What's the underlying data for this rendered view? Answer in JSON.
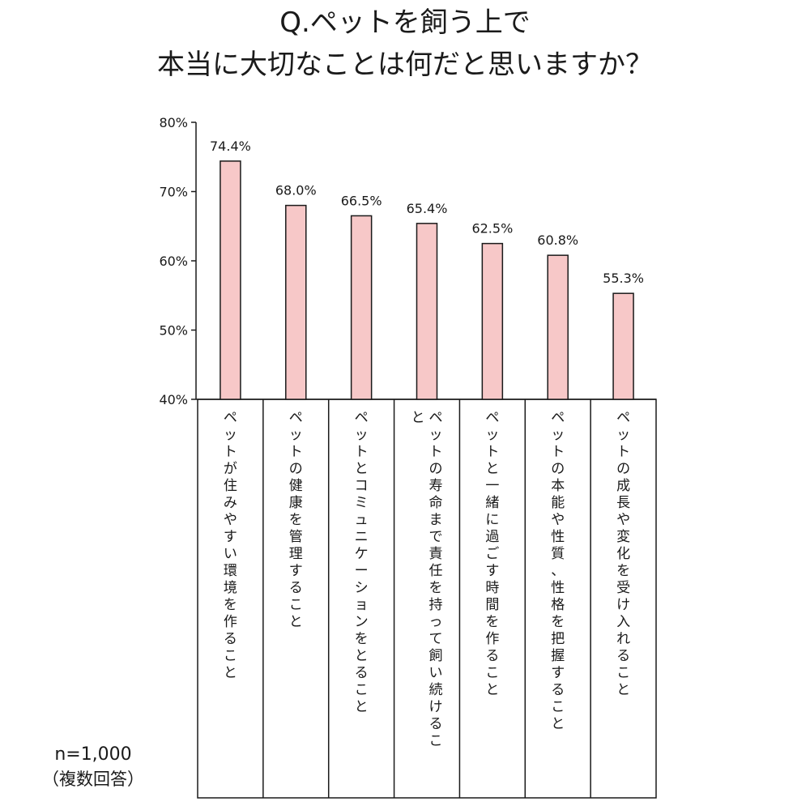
{
  "title_line1": "Q.ペットを飼う上で",
  "title_line2": "本当に大切なことは何だと思いますか？",
  "sample_note": "n=1,000",
  "multi_note": "（複数回答）",
  "colors": {
    "bar_fill": "#f7c8c8",
    "bar_stroke": "#1a1a1a",
    "axis": "#1a1a1a"
  },
  "chart_data": {
    "type": "bar",
    "categories": [
      "ペットが住みやすい環境を作ること",
      "ペットの健康を管理すること",
      "ペットとコミュニケーションをとること",
      "ペットの寿命まで責任を持って飼い続けること",
      "ペットと一緒に過ごす時間を作ること",
      "ペットの本能や性質、性格を把握すること",
      "ペットの成長や変化を受け入れること"
    ],
    "values": [
      74.4,
      68.0,
      66.5,
      65.4,
      62.5,
      60.8,
      55.3
    ],
    "value_labels": [
      "74.4%",
      "68.0%",
      "66.5%",
      "65.4%",
      "62.5%",
      "60.8%",
      "55.3%"
    ],
    "y_ticks": [
      80,
      70,
      60,
      50,
      40
    ],
    "y_tick_labels": [
      "80%",
      "70%",
      "60%",
      "50%",
      "40%"
    ],
    "ylim": [
      40,
      80
    ],
    "grid": false,
    "legend": "none"
  }
}
